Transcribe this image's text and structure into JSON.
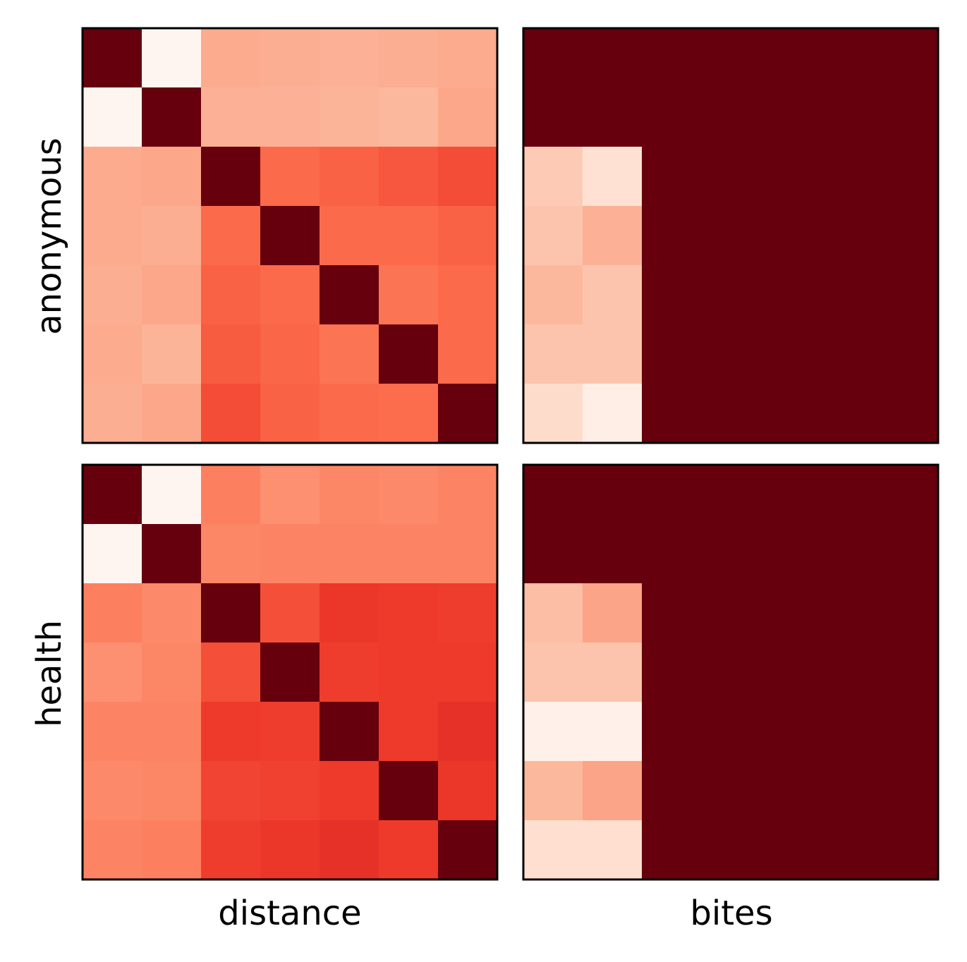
{
  "chart_data": {
    "type": "heatmap",
    "colormap": "Reds",
    "col_labels": [
      "distance",
      "bites"
    ],
    "row_labels": [
      "anonymous",
      "health"
    ],
    "grid": false,
    "panels": [
      {
        "row": "anonymous",
        "col": "distance",
        "matrix": [
          [
            1.0,
            0.0,
            0.3,
            0.29,
            0.28,
            0.29,
            0.3
          ],
          [
            0.0,
            1.0,
            0.28,
            0.28,
            0.27,
            0.26,
            0.31
          ],
          [
            0.3,
            0.31,
            1.0,
            0.5,
            0.52,
            0.55,
            0.58
          ],
          [
            0.3,
            0.29,
            0.5,
            1.0,
            0.5,
            0.5,
            0.52
          ],
          [
            0.29,
            0.31,
            0.52,
            0.5,
            1.0,
            0.47,
            0.5
          ],
          [
            0.3,
            0.27,
            0.54,
            0.51,
            0.47,
            1.0,
            0.5
          ],
          [
            0.29,
            0.31,
            0.58,
            0.52,
            0.5,
            0.49,
            1.0
          ]
        ]
      },
      {
        "row": "anonymous",
        "col": "bites",
        "matrix": [
          [
            1,
            1,
            1,
            1,
            1,
            1,
            1
          ],
          [
            1,
            1,
            1,
            1,
            1,
            1,
            1
          ],
          [
            0.2,
            0.12,
            1,
            1,
            1,
            1,
            1
          ],
          [
            0.22,
            0.28,
            1,
            1,
            1,
            1,
            1
          ],
          [
            0.26,
            0.22,
            1,
            1,
            1,
            1,
            1
          ],
          [
            0.22,
            0.22,
            1,
            1,
            1,
            1,
            1
          ],
          [
            0.14,
            0.04,
            1,
            1,
            1,
            1,
            1
          ]
        ]
      },
      {
        "row": "health",
        "col": "distance",
        "matrix": [
          [
            1.0,
            0.0,
            0.43,
            0.38,
            0.41,
            0.4,
            0.42
          ],
          [
            0.0,
            1.0,
            0.41,
            0.42,
            0.42,
            0.42,
            0.42
          ],
          [
            0.43,
            0.4,
            1.0,
            0.57,
            0.64,
            0.63,
            0.62
          ],
          [
            0.38,
            0.41,
            0.57,
            1.0,
            0.62,
            0.63,
            0.63
          ],
          [
            0.42,
            0.42,
            0.63,
            0.62,
            1.0,
            0.63,
            0.66
          ],
          [
            0.4,
            0.41,
            0.6,
            0.61,
            0.63,
            1.0,
            0.64
          ],
          [
            0.42,
            0.43,
            0.62,
            0.64,
            0.66,
            0.63,
            1.0
          ]
        ]
      },
      {
        "row": "health",
        "col": "bites",
        "matrix": [
          [
            1,
            1,
            1,
            1,
            1,
            1,
            1
          ],
          [
            1,
            1,
            1,
            1,
            1,
            1,
            1
          ],
          [
            0.24,
            0.32,
            1,
            1,
            1,
            1,
            1
          ],
          [
            0.22,
            0.22,
            1,
            1,
            1,
            1,
            1
          ],
          [
            0.03,
            0.03,
            1,
            1,
            1,
            1,
            1
          ],
          [
            0.26,
            0.32,
            1,
            1,
            1,
            1,
            1
          ],
          [
            0.13,
            0.13,
            1,
            1,
            1,
            1,
            1
          ]
        ]
      }
    ]
  }
}
